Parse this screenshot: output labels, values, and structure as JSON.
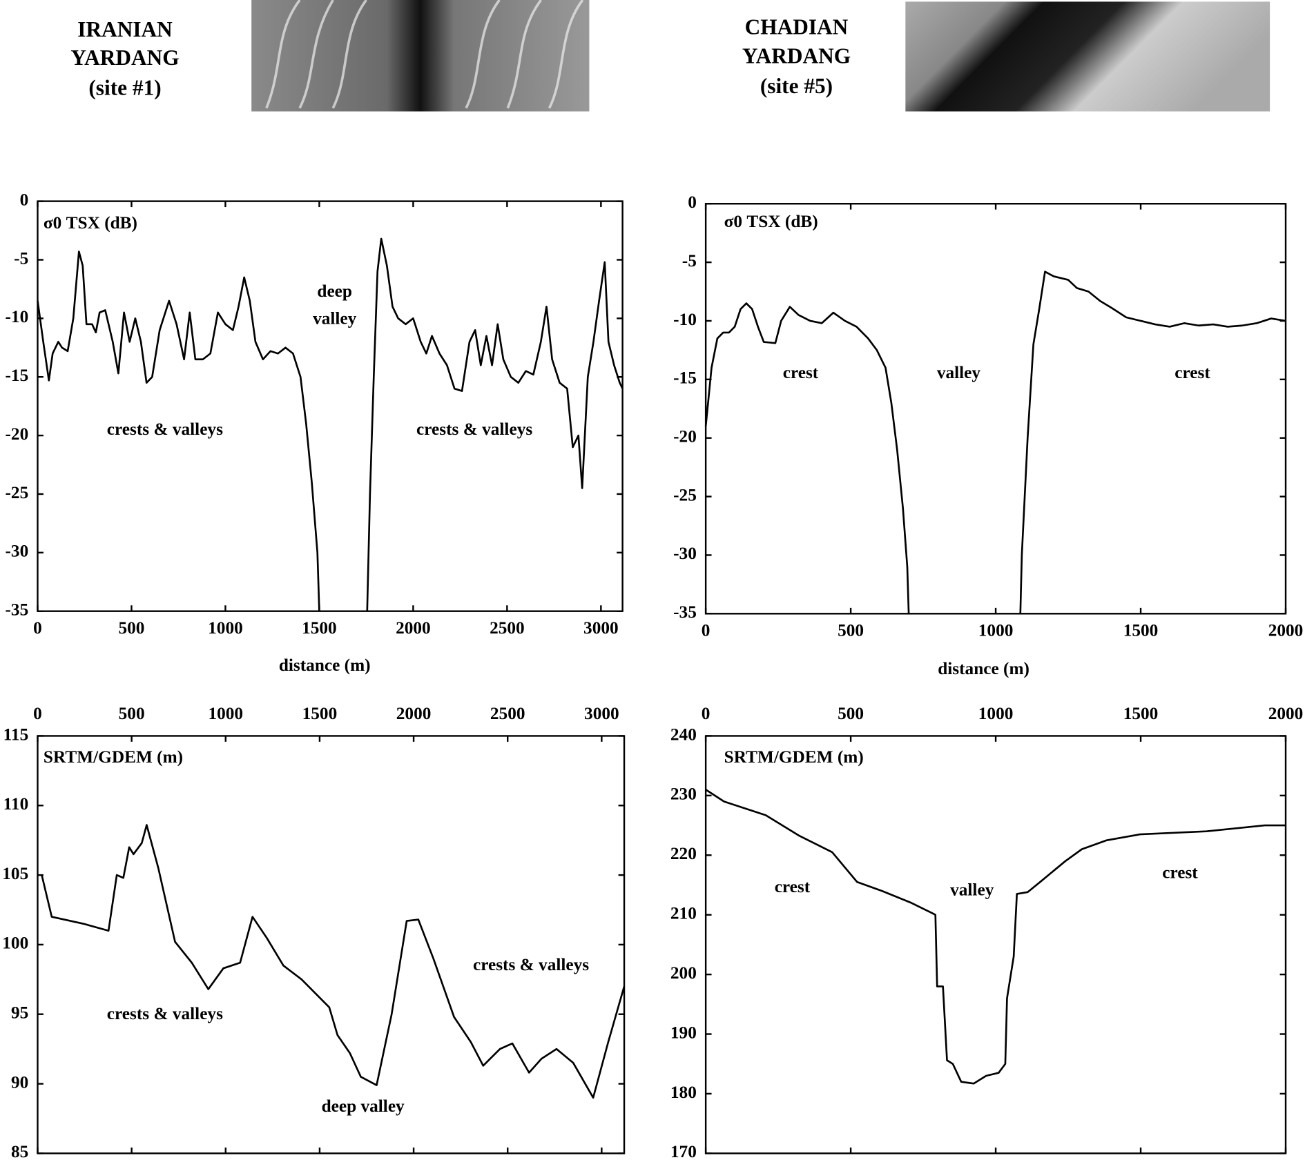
{
  "headers": [
    {
      "lines": [
        "IRANIAN",
        "YARDANG",
        "(site #1)"
      ]
    },
    {
      "lines": [
        "CHADIAN",
        "YARDANG",
        "(site #5)"
      ]
    }
  ],
  "chart_data": [
    {
      "type": "line",
      "ylabel": "σ0 TSX (dB)",
      "xlabel": "distance (m)",
      "annotations": [
        "deep",
        "valley",
        "crests & valleys",
        "crests & valleys"
      ],
      "color": "#000000",
      "xlim": [
        0,
        3115
      ],
      "xticks": [
        0,
        500,
        1000,
        1500,
        2000,
        2500,
        3000
      ],
      "ylim": [
        -35,
        0
      ],
      "yticks": [
        0,
        -5,
        -10,
        -15,
        -20,
        -25,
        -30,
        -35
      ],
      "x": [
        0,
        30,
        60,
        80,
        110,
        130,
        160,
        190,
        220,
        240,
        260,
        290,
        310,
        330,
        360,
        400,
        430,
        460,
        490,
        520,
        550,
        580,
        610,
        650,
        700,
        740,
        780,
        810,
        840,
        880,
        920,
        960,
        1000,
        1040,
        1070,
        1100,
        1130,
        1160,
        1200,
        1240,
        1280,
        1320,
        1360,
        1400,
        1430,
        1460,
        1490,
        1500,
        1600,
        1755,
        1770,
        1790,
        1810,
        1830,
        1860,
        1890,
        1920,
        1960,
        2000,
        2040,
        2070,
        2100,
        2140,
        2180,
        2220,
        2260,
        2300,
        2330,
        2360,
        2390,
        2420,
        2450,
        2480,
        2520,
        2560,
        2600,
        2640,
        2680,
        2710,
        2740,
        2780,
        2820,
        2850,
        2880,
        2900,
        2930,
        2960,
        2990,
        3020,
        3040,
        3070,
        3100,
        3115
      ],
      "values": [
        -8.5,
        -12,
        -15.3,
        -13,
        -12,
        -12.5,
        -12.8,
        -10,
        -4.3,
        -5.5,
        -10.5,
        -10.5,
        -11.2,
        -9.5,
        -9.3,
        -12,
        -14.7,
        -9.5,
        -12,
        -10,
        -12,
        -15.5,
        -15,
        -11,
        -8.5,
        -10.5,
        -13.5,
        -9.5,
        -13.5,
        -13.5,
        -13,
        -9.5,
        -10.5,
        -11,
        -9,
        -6.5,
        -8.5,
        -12,
        -13.5,
        -12.8,
        -13,
        -12.5,
        -13,
        -15,
        -19,
        -24,
        -30,
        -35,
        null,
        -35,
        -25,
        -15,
        -6,
        -3.2,
        -5.5,
        -9,
        -10,
        -10.5,
        -10,
        -12,
        -13,
        -11.5,
        -13,
        -14,
        -16,
        -16.2,
        -12,
        -11,
        -14,
        -11.5,
        -14,
        -10.5,
        -13.5,
        -15,
        -15.5,
        -14.5,
        -14.8,
        -12,
        -9,
        -13.5,
        -15.5,
        -16,
        -21,
        -20,
        -24.5,
        -15,
        -12,
        -8.5,
        -5.2,
        -12,
        -14,
        -15.5,
        -16
      ]
    },
    {
      "type": "line",
      "ylabel": "σ0 TSX (dB)",
      "xlabel": "distance (m)",
      "annotations": [
        "crest",
        "valley",
        "crest"
      ],
      "color": "#000000",
      "xlim": [
        0,
        2000
      ],
      "xticks": [
        0,
        500,
        1000,
        1500,
        2000
      ],
      "ylim": [
        -35,
        0
      ],
      "yticks": [
        0,
        -5,
        -10,
        -15,
        -20,
        -25,
        -30,
        -35
      ],
      "x": [
        0,
        20,
        40,
        60,
        80,
        100,
        120,
        140,
        160,
        180,
        200,
        240,
        260,
        290,
        320,
        360,
        400,
        440,
        480,
        520,
        560,
        590,
        620,
        640,
        660,
        680,
        695,
        700,
        900,
        1085,
        1090,
        1110,
        1130,
        1150,
        1170,
        1200,
        1250,
        1280,
        1320,
        1360,
        1400,
        1450,
        1500,
        1550,
        1600,
        1650,
        1700,
        1750,
        1800,
        1850,
        1900,
        1950,
        2000
      ],
      "values": [
        -19,
        -14,
        -11.5,
        -11,
        -11,
        -10.5,
        -9,
        -8.5,
        -9,
        -10.5,
        -11.8,
        -11.9,
        -10,
        -8.8,
        -9.5,
        -10,
        -10.2,
        -9.3,
        -10,
        -10.5,
        -11.5,
        -12.5,
        -14,
        -17,
        -21,
        -26,
        -31,
        -35,
        null,
        -35,
        -30,
        -20,
        -12,
        -9,
        -5.8,
        -6.2,
        -6.5,
        -7.2,
        -7.5,
        -8.3,
        -8.9,
        -9.7,
        -10,
        -10.3,
        -10.5,
        -10.2,
        -10.4,
        -10.3,
        -10.5,
        -10.4,
        -10.2,
        -9.8,
        -10
      ]
    },
    {
      "type": "line",
      "ylabel": "SRTM/GDEM (m)",
      "annotations": [
        "crests & valleys",
        "crests & valleys",
        "deep valley"
      ],
      "color": "#000000",
      "xlim": [
        0,
        3120
      ],
      "xticks": [
        0,
        500,
        1000,
        1500,
        2000,
        2500,
        3000
      ],
      "ylim": [
        85,
        115
      ],
      "yticks": [
        85,
        90,
        95,
        100,
        105,
        110,
        115
      ],
      "x": [
        22,
        75,
        244,
        377,
        421,
        456,
        487,
        510,
        554,
        580,
        642,
        731,
        820,
        908,
        988,
        1077,
        1143,
        1218,
        1307,
        1404,
        1551,
        1595,
        1661,
        1719,
        1803,
        1883,
        1963,
        2025,
        2105,
        2215,
        2304,
        2370,
        2459,
        2525,
        2614,
        2680,
        2760,
        2849,
        2955,
        3035,
        3120
      ],
      "values": [
        105,
        102,
        101.5,
        101,
        105,
        104.8,
        107,
        106.5,
        107.3,
        108.6,
        105.5,
        100.2,
        98.7,
        96.8,
        98.3,
        98.7,
        102,
        100.5,
        98.5,
        97.5,
        95.5,
        93.5,
        92.2,
        90.5,
        89.9,
        95,
        101.7,
        101.8,
        99,
        94.8,
        93,
        91.3,
        92.5,
        92.9,
        90.8,
        91.8,
        92.5,
        91.5,
        89,
        93,
        97
      ]
    },
    {
      "type": "line",
      "ylabel": "SRTM/GDEM (m)",
      "annotations": [
        "crest",
        "valley",
        "crest"
      ],
      "color": "#000000",
      "xlim": [
        0,
        2000
      ],
      "xticks": [
        0,
        500,
        1000,
        1500,
        2000
      ],
      "ylim": [
        170,
        240
      ],
      "yticks": [
        170,
        180,
        190,
        200,
        210,
        220,
        230,
        240
      ],
      "x": [
        0,
        63,
        207,
        321,
        436,
        522,
        608,
        709,
        780,
        792,
        798,
        818,
        832,
        852,
        881,
        924,
        967,
        1010,
        1033,
        1039,
        1062,
        1073,
        1110,
        1153,
        1240,
        1297,
        1383,
        1498,
        1727,
        1928,
        2000
      ],
      "values": [
        231,
        229,
        226.7,
        223.3,
        220.5,
        215.5,
        214,
        212,
        210.3,
        210,
        198,
        198,
        185.6,
        185,
        182,
        181.7,
        183,
        183.5,
        185,
        196,
        203,
        213.5,
        213.8,
        215.5,
        219,
        221,
        222.5,
        223.5,
        224,
        225,
        225
      ]
    }
  ]
}
